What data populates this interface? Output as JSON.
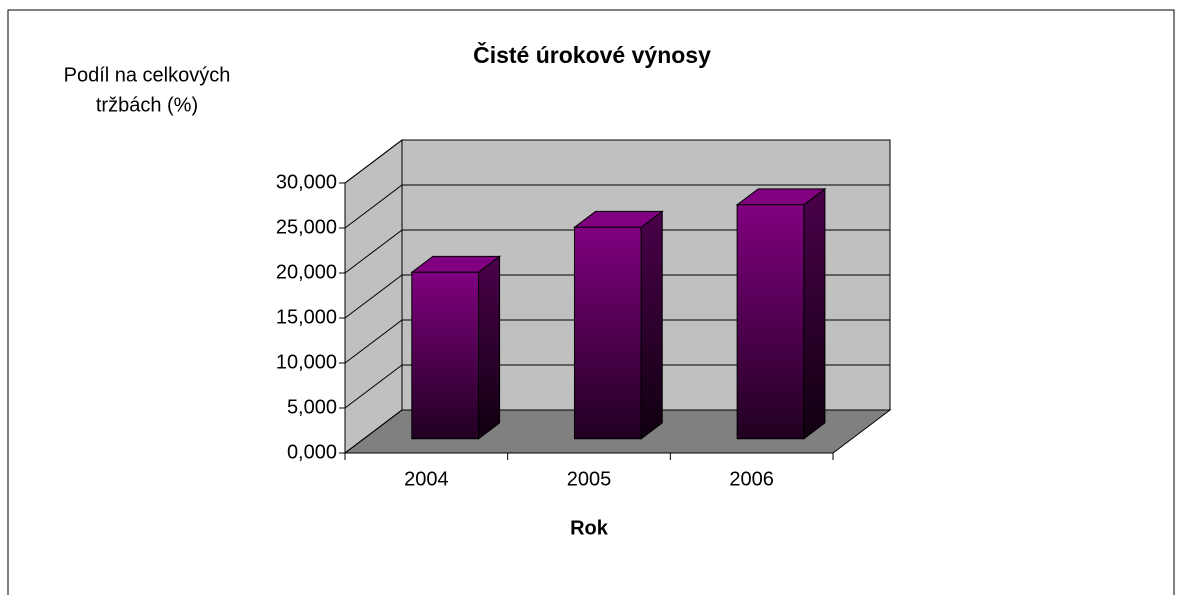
{
  "chart_data": {
    "type": "bar3d",
    "title": "Čisté úrokové výnosy",
    "y_label": [
      "Podíl na celkových",
      "tržbách (%)"
    ],
    "x_label": "Rok",
    "categories": [
      "2004",
      "2005",
      "2006"
    ],
    "values": [
      18.5,
      23.5,
      26
    ],
    "color": "#800080",
    "ylim": [
      0,
      30
    ],
    "yticks": [
      {
        "value": 0,
        "label": "0,000"
      },
      {
        "value": 5,
        "label": "5,000"
      },
      {
        "value": 10,
        "label": "10,000"
      },
      {
        "value": 15,
        "label": "15,000"
      },
      {
        "value": 20,
        "label": "20,000"
      },
      {
        "value": 25,
        "label": "25,000"
      },
      {
        "value": 30,
        "label": "30,000"
      }
    ],
    "grid": true
  }
}
